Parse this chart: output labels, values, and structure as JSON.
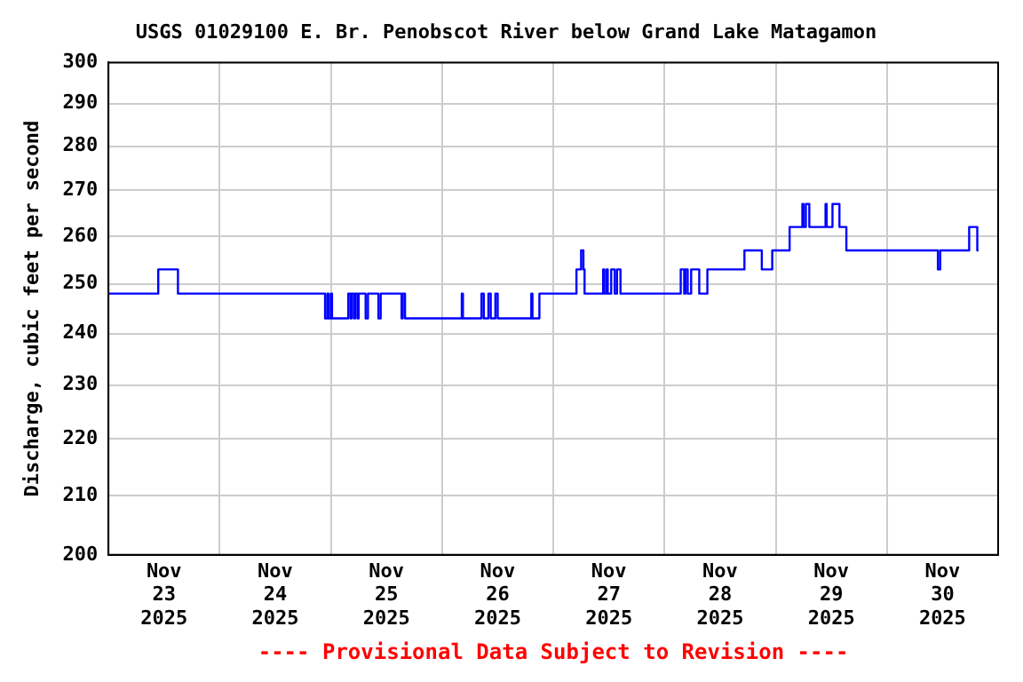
{
  "chart_data": {
    "type": "step",
    "title": "USGS 01029100 E. Br. Penobscot River below Grand Lake Matagamon",
    "ylabel": "Discharge, cubic feet per second",
    "annotations": [
      "---- Provisional Data Subject to Revision ----"
    ],
    "log": true,
    "grid": true,
    "legend": false,
    "marker": "none",
    "line_style": "solid",
    "xlim": [
      "2025-11-23T00:00",
      "2025-12-01T00:00"
    ],
    "xticks": [
      {
        "value": "2025-11-23T12:00",
        "label": "Nov 23 2025"
      },
      {
        "value": "2025-11-24T00:00",
        "label": null
      },
      {
        "value": "2025-11-24T12:00",
        "label": "Nov 24 2025"
      },
      {
        "value": "2025-11-25T00:00",
        "label": null
      },
      {
        "value": "2025-11-25T12:00",
        "label": "Nov 25 2025"
      },
      {
        "value": "2025-11-26T00:00",
        "label": null
      },
      {
        "value": "2025-11-26T12:00",
        "label": "Nov 26 2025"
      },
      {
        "value": "2025-11-27T00:00",
        "label": null
      },
      {
        "value": "2025-11-27T12:00",
        "label": "Nov 27 2025"
      },
      {
        "value": "2025-11-28T00:00",
        "label": null
      },
      {
        "value": "2025-11-28T12:00",
        "label": "Nov 28 2025"
      },
      {
        "value": "2025-11-29T00:00",
        "label": null
      },
      {
        "value": "2025-11-29T12:00",
        "label": "Nov 29 2025"
      },
      {
        "value": "2025-11-30T00:00",
        "label": null
      },
      {
        "value": "2025-11-30T12:00",
        "label": "Nov 30 2025"
      }
    ],
    "ylim": [
      200,
      300
    ],
    "yticks": [
      200,
      210,
      220,
      230,
      240,
      250,
      260,
      270,
      280,
      290,
      300
    ],
    "series": [
      {
        "color": "#0000ff",
        "x": [
          "2025-11-23T00:00",
          "2025-11-23T10:45",
          "2025-11-23T15:00",
          "2025-11-24T22:45",
          "2025-11-24T23:15",
          "2025-11-24T23:30",
          "2025-11-25T00:00",
          "2025-11-25T00:15",
          "2025-11-25T03:45",
          "2025-11-25T04:15",
          "2025-11-25T04:30",
          "2025-11-25T05:00",
          "2025-11-25T05:15",
          "2025-11-25T05:45",
          "2025-11-25T06:00",
          "2025-11-25T07:30",
          "2025-11-25T08:00",
          "2025-11-25T10:15",
          "2025-11-25T10:45",
          "2025-11-25T15:15",
          "2025-11-25T15:30",
          "2025-11-25T16:00",
          "2025-11-26T04:15",
          "2025-11-26T04:30",
          "2025-11-26T08:30",
          "2025-11-26T09:00",
          "2025-11-26T10:00",
          "2025-11-26T10:30",
          "2025-11-26T11:30",
          "2025-11-26T12:00",
          "2025-11-26T19:15",
          "2025-11-26T19:30",
          "2025-11-26T21:00",
          "2025-11-27T05:00",
          "2025-11-27T06:00",
          "2025-11-27T06:30",
          "2025-11-27T06:45",
          "2025-11-27T10:45",
          "2025-11-27T11:00",
          "2025-11-27T11:30",
          "2025-11-27T11:45",
          "2025-11-27T12:30",
          "2025-11-27T13:15",
          "2025-11-27T13:45",
          "2025-11-27T14:30",
          "2025-11-28T03:30",
          "2025-11-28T04:15",
          "2025-11-28T04:30",
          "2025-11-28T05:00",
          "2025-11-28T05:45",
          "2025-11-28T07:30",
          "2025-11-28T09:15",
          "2025-11-28T17:15",
          "2025-11-28T21:00",
          "2025-11-28T23:15",
          "2025-11-29T03:00",
          "2025-11-29T05:45",
          "2025-11-29T06:00",
          "2025-11-29T06:30",
          "2025-11-29T07:15",
          "2025-11-29T10:45",
          "2025-11-29T11:00",
          "2025-11-29T12:15",
          "2025-11-29T13:45",
          "2025-11-29T15:15",
          "2025-11-30T11:00",
          "2025-11-30T11:30",
          "2025-11-30T17:45",
          "2025-11-30T19:30",
          "2025-11-30T19:45"
        ],
        "values": [
          248,
          253,
          248,
          243,
          248,
          243,
          248,
          243,
          248,
          243,
          248,
          243,
          248,
          243,
          248,
          243,
          248,
          243,
          248,
          243,
          248,
          243,
          248,
          243,
          248,
          243,
          248,
          243,
          248,
          243,
          248,
          243,
          248,
          253,
          257,
          253,
          248,
          253,
          248,
          253,
          248,
          253,
          248,
          253,
          248,
          253,
          248,
          253,
          248,
          253,
          248,
          253,
          257,
          253,
          257,
          262,
          267,
          262,
          267,
          262,
          267,
          262,
          267,
          262,
          257,
          253,
          257,
          262,
          257,
          257
        ]
      }
    ]
  }
}
